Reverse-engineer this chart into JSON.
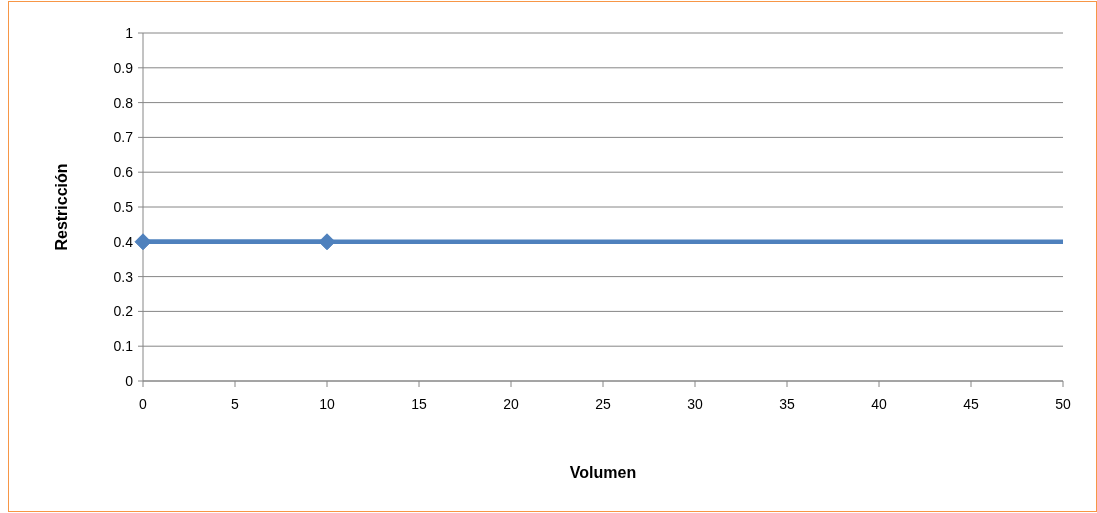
{
  "chart_data": {
    "type": "line",
    "xlabel": "Volumen",
    "ylabel": "Restricción",
    "xlim": [
      0,
      50
    ],
    "xticks": [
      0,
      5,
      10,
      15,
      20,
      25,
      30,
      35,
      40,
      45,
      50
    ],
    "ylim": [
      0,
      1
    ],
    "yticks": [
      0,
      0.1,
      0.2,
      0.3,
      0.4,
      0.5,
      0.6,
      0.7,
      0.8,
      0.9,
      1
    ],
    "grid": "y",
    "ref_lines": [
      {
        "axis": "y",
        "value": 0.4,
        "color": "#4f81bd"
      }
    ],
    "series": [
      {
        "color": "#4f81bd",
        "x": [
          0,
          10
        ],
        "values": [
          0.4,
          0.4
        ],
        "marker": "diamond"
      }
    ]
  }
}
